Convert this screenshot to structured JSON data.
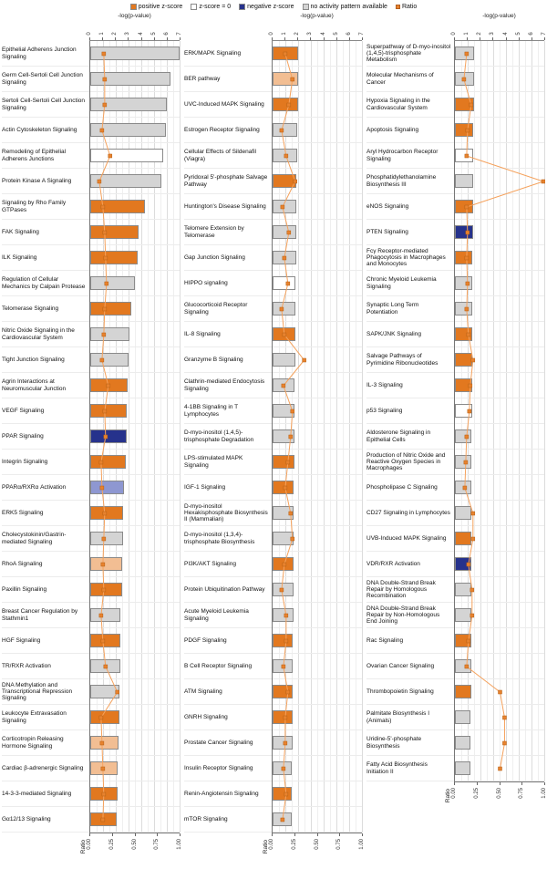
{
  "legend": {
    "items": [
      {
        "label": "positive z-score",
        "color": "#E2781F",
        "type": "square"
      },
      {
        "label": "z-score = 0",
        "color": "#FFFFFF",
        "type": "square"
      },
      {
        "label": "negative z-score",
        "color": "#26328C",
        "type": "square"
      },
      {
        "label": "no activity pattern available",
        "color": "#D4D4D4",
        "type": "square"
      },
      {
        "label": "Ratio",
        "color": "#E8822E",
        "type": "point"
      }
    ]
  },
  "axes": {
    "top_title": "-log(p-value)",
    "top_ticks": [
      "0",
      "1",
      "2",
      "3",
      "4",
      "5",
      "6",
      "7"
    ],
    "top_max": 7,
    "bottom_title": "Ratio",
    "bottom_ticks": [
      "0.00",
      "0.25",
      "0.50",
      "0.75",
      "1.00"
    ],
    "bottom_max": 1.0
  },
  "colors": {
    "positive": "#E2781F",
    "positive_light": "#F2BE93",
    "zero": "#FFFFFF",
    "negative": "#26328C",
    "negative_light": "#8E97D1",
    "none": "#D4D4D4",
    "bar_border": "#8A8A8A",
    "ratio_line": "#F5A25D",
    "ratio_point": "#E8822E",
    "gridline_major": "#DCDCDC",
    "gridline_minor": "#EFEFEF"
  },
  "chart_data": {
    "type": "bar",
    "orientation": "horizontal",
    "xlim": [
      0,
      7
    ],
    "ratio_lim": [
      0,
      1
    ],
    "grid": true,
    "legend_position": "top",
    "panels": [
      {
        "name": "panel-1",
        "rows": [
          {
            "label": "Epithelial Adherens Junction Signaling",
            "pvalue": 7.0,
            "category": "none",
            "ratio": 0.15
          },
          {
            "label": "Germ Cell-Sertoli Cell Junction Signaling",
            "pvalue": 6.3,
            "category": "none",
            "ratio": 0.16
          },
          {
            "label": "Sertoli Cell-Sertoli Cell Junction Signaling",
            "pvalue": 6.0,
            "category": "none",
            "ratio": 0.16
          },
          {
            "label": "Actin Cytoskeleton Signaling",
            "pvalue": 5.9,
            "category": "none",
            "ratio": 0.13
          },
          {
            "label": "Remodeling of Epithelial Adherens Junctions",
            "pvalue": 5.7,
            "category": "zero",
            "ratio": 0.22
          },
          {
            "label": "Protein Kinase A Signaling",
            "pvalue": 5.6,
            "category": "none",
            "ratio": 0.1
          },
          {
            "label": "Signaling by Rho Family GTPases",
            "pvalue": 4.3,
            "category": "positive",
            "ratio": 0.14
          },
          {
            "label": "FAK Signaling",
            "pvalue": 3.8,
            "category": "positive",
            "ratio": 0.16
          },
          {
            "label": "ILK Signaling",
            "pvalue": 3.7,
            "category": "positive",
            "ratio": 0.17
          },
          {
            "label": "Regulation of Cellular Mechanics by Calpain Protease",
            "pvalue": 3.5,
            "category": "none",
            "ratio": 0.18
          },
          {
            "label": "Telomerase Signaling",
            "pvalue": 3.2,
            "category": "positive",
            "ratio": 0.16
          },
          {
            "label": "Nitric Oxide Signaling in the Cardiovascular System",
            "pvalue": 3.1,
            "category": "none",
            "ratio": 0.15
          },
          {
            "label": "Tight Junction Signaling",
            "pvalue": 3.0,
            "category": "none",
            "ratio": 0.13
          },
          {
            "label": "Agrin Interactions at Neuromuscular Junction",
            "pvalue": 2.95,
            "category": "positive",
            "ratio": 0.2
          },
          {
            "label": "VEGF Signaling",
            "pvalue": 2.9,
            "category": "positive",
            "ratio": 0.16
          },
          {
            "label": "PPAR Signaling",
            "pvalue": 2.85,
            "category": "negative",
            "ratio": 0.17
          },
          {
            "label": "Integrin Signaling",
            "pvalue": 2.8,
            "category": "positive",
            "ratio": 0.12
          },
          {
            "label": "PPARα/RXRα Activation",
            "pvalue": 2.7,
            "category": "negative_light",
            "ratio": 0.13
          },
          {
            "label": "ERK5 Signaling",
            "pvalue": 2.6,
            "category": "positive",
            "ratio": 0.16
          },
          {
            "label": "Cholecystokinin/Gastrin-mediated Signaling",
            "pvalue": 2.6,
            "category": "none",
            "ratio": 0.15
          },
          {
            "label": "RhoA Signaling",
            "pvalue": 2.5,
            "category": "positive_light",
            "ratio": 0.14
          },
          {
            "label": "Paxillin Signaling",
            "pvalue": 2.5,
            "category": "positive",
            "ratio": 0.15
          },
          {
            "label": "Breast Cancer Regulation by Stathmin1",
            "pvalue": 2.4,
            "category": "none",
            "ratio": 0.12
          },
          {
            "label": "HGF Signaling",
            "pvalue": 2.4,
            "category": "positive",
            "ratio": 0.14
          },
          {
            "label": "TR/RXR Activation",
            "pvalue": 2.35,
            "category": "none",
            "ratio": 0.17
          },
          {
            "label": "DNA Methylation and Transcriptional Repression Signaling",
            "pvalue": 2.3,
            "category": "none",
            "ratio": 0.3
          },
          {
            "label": "Leukocyte Extravasation Signaling",
            "pvalue": 2.3,
            "category": "positive",
            "ratio": 0.12
          },
          {
            "label": "Corticotropin Releasing Hormone Signaling",
            "pvalue": 2.25,
            "category": "positive_light",
            "ratio": 0.13
          },
          {
            "label": "Cardiac β-adrenergic Signaling",
            "pvalue": 2.2,
            "category": "positive_light",
            "ratio": 0.14
          },
          {
            "label": "14-3-3-mediated Signaling",
            "pvalue": 2.15,
            "category": "positive",
            "ratio": 0.15
          },
          {
            "label": "Gα12/13 Signaling",
            "pvalue": 2.1,
            "category": "positive",
            "ratio": 0.14
          }
        ]
      },
      {
        "name": "panel-2",
        "rows": [
          {
            "label": "ERK/MAPK Signaling",
            "pvalue": 2.05,
            "category": "positive",
            "ratio": 0.14
          },
          {
            "label": "BER pathway",
            "pvalue": 2.0,
            "category": "positive_light",
            "ratio": 0.22
          },
          {
            "label": "UVC-Induced MAPK Signaling",
            "pvalue": 2.0,
            "category": "positive",
            "ratio": 0.18
          },
          {
            "label": "Estrogen Receptor Signaling",
            "pvalue": 1.95,
            "category": "none",
            "ratio": 0.1
          },
          {
            "label": "Cellular Effects of Sildenafil (Viagra)",
            "pvalue": 1.93,
            "category": "none",
            "ratio": 0.15
          },
          {
            "label": "Pyridoxal 5'-phosphate Salvage Pathway",
            "pvalue": 1.9,
            "category": "positive",
            "ratio": 0.25
          },
          {
            "label": "Huntington's Disease Signaling",
            "pvalue": 1.9,
            "category": "none",
            "ratio": 0.11
          },
          {
            "label": "Telomere Extension by Telomerase",
            "pvalue": 1.88,
            "category": "none",
            "ratio": 0.18
          },
          {
            "label": "Gap Junction Signaling",
            "pvalue": 1.85,
            "category": "none",
            "ratio": 0.13
          },
          {
            "label": "HIPPO signaling",
            "pvalue": 1.83,
            "category": "zero",
            "ratio": 0.17
          },
          {
            "label": "Glucocorticoid Receptor Signaling",
            "pvalue": 1.82,
            "category": "none",
            "ratio": 0.1
          },
          {
            "label": "IL-8 Signaling",
            "pvalue": 1.8,
            "category": "positive",
            "ratio": 0.13
          },
          {
            "label": "Granzyme B Signaling",
            "pvalue": 1.78,
            "category": "none",
            "ratio": 0.35
          },
          {
            "label": "Clathrin-mediated Endocytosis Signaling",
            "pvalue": 1.77,
            "category": "none",
            "ratio": 0.12
          },
          {
            "label": "4-1BB Signaling in T Lymphocytes",
            "pvalue": 1.75,
            "category": "none",
            "ratio": 0.22
          },
          {
            "label": "D-myo-inositol (1,4,5)-trisphosphate Degradation",
            "pvalue": 1.74,
            "category": "none",
            "ratio": 0.2
          },
          {
            "label": "LPS-stimulated MAPK Signaling",
            "pvalue": 1.72,
            "category": "positive",
            "ratio": 0.17
          },
          {
            "label": "IGF-1 Signaling",
            "pvalue": 1.7,
            "category": "positive",
            "ratio": 0.14
          },
          {
            "label": "D-myo-inositol Hexakisphosphate Biosynthesis II (Mammalian)",
            "pvalue": 1.7,
            "category": "none",
            "ratio": 0.2
          },
          {
            "label": "D-myo-inositol (1,3,4)-trisphosphate Biosynthesis",
            "pvalue": 1.68,
            "category": "none",
            "ratio": 0.22
          },
          {
            "label": "PI3K/AKT Signaling",
            "pvalue": 1.67,
            "category": "positive",
            "ratio": 0.13
          },
          {
            "label": "Protein Ubiquitination Pathway",
            "pvalue": 1.65,
            "category": "none",
            "ratio": 0.1
          },
          {
            "label": "Acute Myeloid Leukemia Signaling",
            "pvalue": 1.64,
            "category": "none",
            "ratio": 0.15
          },
          {
            "label": "PDGF Signaling",
            "pvalue": 1.62,
            "category": "positive",
            "ratio": 0.15
          },
          {
            "label": "B Cell Receptor Signaling",
            "pvalue": 1.6,
            "category": "none",
            "ratio": 0.12
          },
          {
            "label": "ATM Signaling",
            "pvalue": 1.6,
            "category": "positive",
            "ratio": 0.17
          },
          {
            "label": "GNRH Signaling",
            "pvalue": 1.58,
            "category": "positive",
            "ratio": 0.14
          },
          {
            "label": "Prostate Cancer Signaling",
            "pvalue": 1.57,
            "category": "none",
            "ratio": 0.14
          },
          {
            "label": "Insulin Receptor Signaling",
            "pvalue": 1.56,
            "category": "none",
            "ratio": 0.12
          },
          {
            "label": "Renin-Angiotensin Signaling",
            "pvalue": 1.55,
            "category": "positive",
            "ratio": 0.15
          },
          {
            "label": "mTOR Signaling",
            "pvalue": 1.54,
            "category": "none",
            "ratio": 0.11
          }
        ]
      },
      {
        "name": "panel-3",
        "rows": [
          {
            "label": "Superpathway of D-myo-inositol (1,4,5)-trisphosphate Metabolism",
            "pvalue": 1.52,
            "category": "none",
            "ratio": 0.13
          },
          {
            "label": "Molecular Mechanisms of Cancer",
            "pvalue": 1.5,
            "category": "none",
            "ratio": 0.1
          },
          {
            "label": "Hypoxia Signaling in the Cardiovascular System",
            "pvalue": 1.5,
            "category": "positive",
            "ratio": 0.18
          },
          {
            "label": "Apoptosis Signaling",
            "pvalue": 1.48,
            "category": "positive",
            "ratio": 0.14
          },
          {
            "label": "Aryl Hydrocarbon Receptor Signaling",
            "pvalue": 1.46,
            "category": "zero",
            "ratio": 0.13
          },
          {
            "label": "Phosphatidylethanolamine Biosynthesis III",
            "pvalue": 1.45,
            "category": "none",
            "ratio": 1.0
          },
          {
            "label": "eNOS Signaling",
            "pvalue": 1.44,
            "category": "positive",
            "ratio": 0.13
          },
          {
            "label": "PTEN Signaling",
            "pvalue": 1.43,
            "category": "negative",
            "ratio": 0.14
          },
          {
            "label": "Fcγ Receptor-mediated Phagocytosis in Macrophages and Monocytes",
            "pvalue": 1.42,
            "category": "positive",
            "ratio": 0.13
          },
          {
            "label": "Chronic Myeloid Leukemia Signaling",
            "pvalue": 1.41,
            "category": "none",
            "ratio": 0.14
          },
          {
            "label": "Synaptic Long Term Potentiation",
            "pvalue": 1.4,
            "category": "none",
            "ratio": 0.13
          },
          {
            "label": "SAPK/JNK Signaling",
            "pvalue": 1.39,
            "category": "positive",
            "ratio": 0.15
          },
          {
            "label": "Salvage Pathways of Pyrimidine Ribonucleotides",
            "pvalue": 1.38,
            "category": "positive",
            "ratio": 0.2
          },
          {
            "label": "IL-3 Signaling",
            "pvalue": 1.37,
            "category": "positive",
            "ratio": 0.17
          },
          {
            "label": "p53 Signaling",
            "pvalue": 1.36,
            "category": "zero",
            "ratio": 0.16
          },
          {
            "label": "Aldosterone Signaling in Epithelial Cells",
            "pvalue": 1.35,
            "category": "none",
            "ratio": 0.13
          },
          {
            "label": "Production of Nitric Oxide and Reactive Oxygen Species in Macrophages",
            "pvalue": 1.34,
            "category": "none",
            "ratio": 0.12
          },
          {
            "label": "Phospholipase C Signaling",
            "pvalue": 1.33,
            "category": "none",
            "ratio": 0.11
          },
          {
            "label": "CD27 Signaling in Lymphocytes",
            "pvalue": 1.33,
            "category": "none",
            "ratio": 0.2
          },
          {
            "label": "UVB-Induced MAPK Signaling",
            "pvalue": 1.32,
            "category": "positive",
            "ratio": 0.2
          },
          {
            "label": "VDR/RXR Activation",
            "pvalue": 1.31,
            "category": "negative",
            "ratio": 0.15
          },
          {
            "label": "DNA Double-Strand Break Repair by Homologous Recombination",
            "pvalue": 1.3,
            "category": "none",
            "ratio": 0.19
          },
          {
            "label": "DNA Double-Strand Break Repair by Non-Homologous End Joining",
            "pvalue": 1.3,
            "category": "none",
            "ratio": 0.19
          },
          {
            "label": "Rac Signaling",
            "pvalue": 1.29,
            "category": "positive",
            "ratio": 0.15
          },
          {
            "label": "Ovarian Cancer Signaling",
            "pvalue": 1.28,
            "category": "none",
            "ratio": 0.13
          },
          {
            "label": "Thrombopoietin Signaling",
            "pvalue": 1.28,
            "category": "positive",
            "ratio": 0.5
          },
          {
            "label": "Palmitate Biosynthesis I (Animals)",
            "pvalue": 1.27,
            "category": "none",
            "ratio": 0.55
          },
          {
            "label": "Uridine-5'-phosphate Biosynthesis",
            "pvalue": 1.26,
            "category": "none",
            "ratio": 0.55
          },
          {
            "label": "Fatty Acid Biosynthesis Initiation II",
            "pvalue": 1.25,
            "category": "none",
            "ratio": 0.5
          }
        ]
      }
    ]
  }
}
